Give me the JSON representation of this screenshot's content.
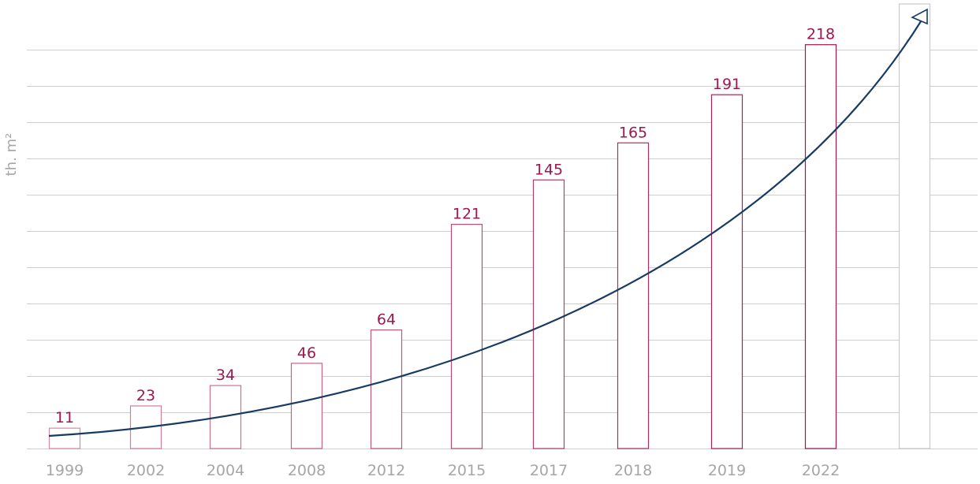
{
  "chart_data": {
    "type": "bar",
    "ylabel": "th. m²",
    "categories": [
      "1999",
      "2002",
      "2004",
      "2008",
      "2012",
      "2015",
      "2017",
      "2018",
      "2019",
      "2022"
    ],
    "values": [
      11,
      23,
      34,
      46,
      64,
      121,
      145,
      165,
      191,
      218
    ],
    "ylim": [
      0,
      240
    ],
    "grid": true,
    "trend_arrow": true,
    "legend": "none"
  },
  "colors": {
    "bar_start": "#d68aa3",
    "bar_end": "#9c1850",
    "label": "#9c1850",
    "trend": "#173b63",
    "grid": "#cfcfcf",
    "tick": "#a6a6a6"
  }
}
